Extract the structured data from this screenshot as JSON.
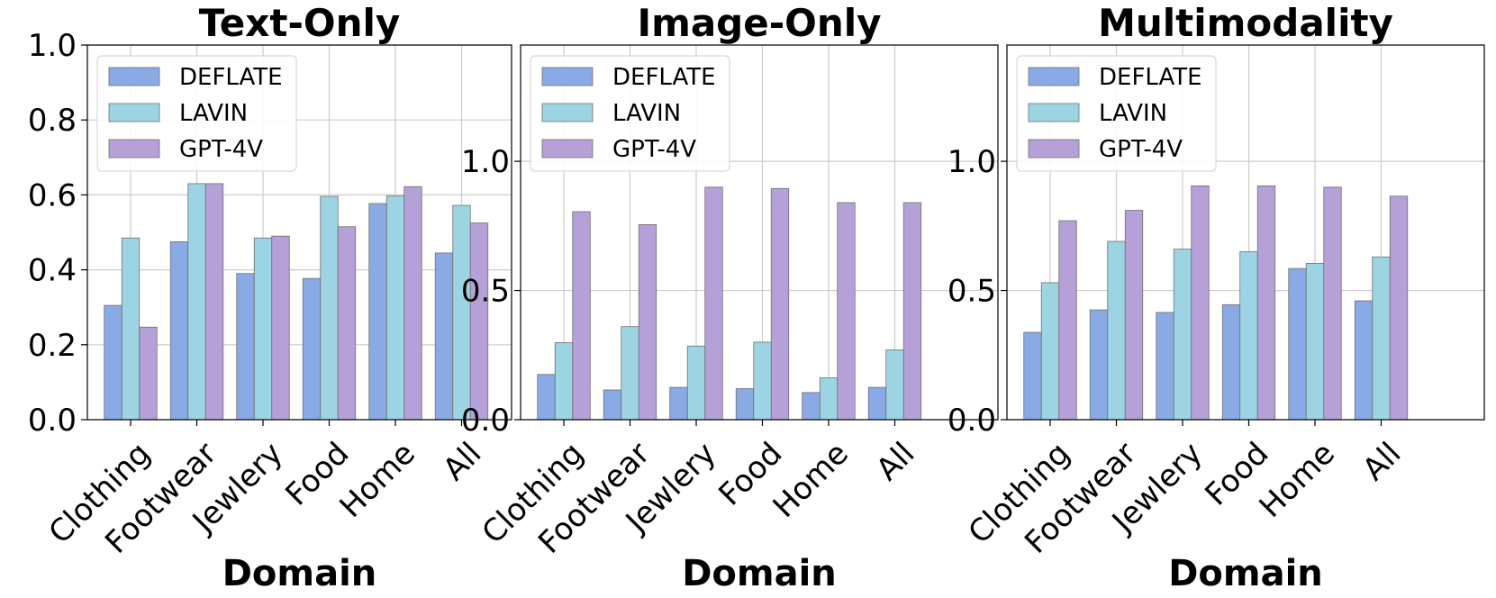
{
  "chart_data": [
    {
      "type": "bar",
      "title": "Text-Only",
      "xlabel": "Domain",
      "ylabel": "",
      "categories": [
        "Clothing",
        "Footwear",
        "Jewlery",
        "Food",
        "Home",
        "All"
      ],
      "ylim": [
        0,
        1.0
      ],
      "yticks": [
        "0.0",
        "0.2",
        "0.4",
        "0.6",
        "0.8",
        "1.0"
      ],
      "grid": true,
      "legend": "top-left",
      "series": [
        {
          "name": "DEFLATE",
          "color": "#8aaae5",
          "values": [
            0.305,
            0.475,
            0.39,
            0.377,
            0.577,
            0.445
          ]
        },
        {
          "name": "LAVIN",
          "color": "#9dd4e4",
          "values": [
            0.485,
            0.63,
            0.485,
            0.596,
            0.597,
            0.572
          ]
        },
        {
          "name": "GPT-4V",
          "color": "#b5a0d8",
          "values": [
            0.247,
            0.63,
            0.49,
            0.515,
            0.622,
            0.525
          ]
        }
      ]
    },
    {
      "type": "bar",
      "title": "Image-Only",
      "xlabel": "Domain",
      "ylabel": "",
      "categories": [
        "Clothing",
        "Footwear",
        "Jewlery",
        "Food",
        "Home",
        "All"
      ],
      "ylim": [
        0,
        1.45
      ],
      "yticks": [
        "0.0",
        "0.5",
        "1.0"
      ],
      "grid": true,
      "legend": "top-left",
      "series": [
        {
          "name": "DEFLATE",
          "color": "#8aaae5",
          "values": [
            0.175,
            0.115,
            0.125,
            0.12,
            0.105,
            0.125
          ]
        },
        {
          "name": "LAVIN",
          "color": "#9dd4e4",
          "values": [
            0.298,
            0.36,
            0.285,
            0.3,
            0.162,
            0.27
          ]
        },
        {
          "name": "GPT-4V",
          "color": "#b5a0d8",
          "values": [
            0.805,
            0.755,
            0.9,
            0.895,
            0.84,
            0.84
          ]
        }
      ]
    },
    {
      "type": "bar",
      "title": "Multimodality",
      "xlabel": "Domain",
      "ylabel": "",
      "categories": [
        "Clothing",
        "Footwear",
        "Jewlery",
        "Food",
        "Home",
        "All"
      ],
      "ylim": [
        0,
        1.45
      ],
      "yticks": [
        "0.0",
        "0.5",
        "1.0"
      ],
      "grid": true,
      "legend": "top-left",
      "series": [
        {
          "name": "DEFLATE",
          "color": "#8aaae5",
          "values": [
            0.338,
            0.425,
            0.415,
            0.445,
            0.585,
            0.46
          ]
        },
        {
          "name": "LAVIN",
          "color": "#9dd4e4",
          "values": [
            0.53,
            0.69,
            0.66,
            0.65,
            0.605,
            0.63
          ]
        },
        {
          "name": "GPT-4V",
          "color": "#b5a0d8",
          "values": [
            0.77,
            0.81,
            0.905,
            0.905,
            0.9,
            0.865
          ]
        }
      ]
    }
  ]
}
